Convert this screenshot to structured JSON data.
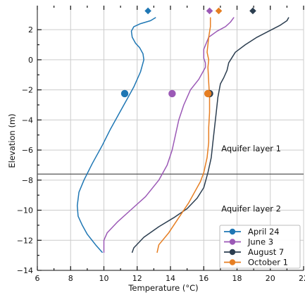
{
  "chart_data": {
    "type": "line",
    "xlabel": "Temperature (°C)",
    "ylabel": "Elevation (m)",
    "xlim": [
      6,
      22
    ],
    "ylim": [
      -14,
      3.6
    ],
    "xticks": [
      6,
      8,
      10,
      12,
      14,
      16,
      18,
      20,
      22
    ],
    "xtick_labels": [
      "6",
      "8",
      "10",
      "12",
      "14",
      "16",
      "18",
      "20",
      "22"
    ],
    "yticks": [
      -14,
      -12,
      -10,
      -8,
      -6,
      -4,
      -2,
      0,
      2
    ],
    "ytick_labels": [
      "−14",
      "−12",
      "−10",
      "−8",
      "−6",
      "−4",
      "−2",
      "0",
      "2"
    ],
    "grid": true,
    "reference_line": {
      "y": -7.6,
      "color": "#555555"
    },
    "annotations": [
      {
        "text": "Aquifer layer 1",
        "x": 18.85,
        "y": -5.9
      },
      {
        "text": "Aquifer layer 2",
        "x": 18.85,
        "y": -9.9
      }
    ],
    "legend_position": "lower-right",
    "series": [
      {
        "name": "April 24",
        "color": "#1f77b4",
        "x": [
          9.9,
          9.5,
          9.0,
          8.7,
          8.45,
          8.4,
          8.5,
          8.8,
          9.3,
          9.9,
          10.4,
          10.9,
          11.4,
          11.8,
          12.2,
          12.4,
          12.35,
          12.15,
          11.9,
          11.7,
          11.65,
          11.8,
          12.2,
          12.8,
          13.1
        ],
        "y": [
          -12.8,
          -12.3,
          -11.6,
          -11.0,
          -10.4,
          -9.7,
          -8.8,
          -8.0,
          -6.9,
          -5.7,
          -4.6,
          -3.6,
          -2.6,
          -1.8,
          -0.8,
          0.0,
          0.4,
          0.8,
          1.1,
          1.5,
          1.9,
          2.2,
          2.4,
          2.6,
          2.8
        ]
      },
      {
        "name": "June 3",
        "color": "#9b59b6",
        "x": [
          10.0,
          10.0,
          10.2,
          10.8,
          11.6,
          12.5,
          13.3,
          13.8,
          14.1,
          14.3,
          14.5,
          14.8,
          15.2,
          15.7,
          15.95,
          16.1,
          16.1,
          16.0,
          16.0,
          16.3,
          16.8,
          17.3,
          17.6,
          17.8
        ],
        "y": [
          -12.8,
          -12.0,
          -11.5,
          -10.8,
          -10.0,
          -9.1,
          -8.0,
          -7.0,
          -6.0,
          -5.0,
          -4.0,
          -3.0,
          -2.0,
          -1.3,
          -0.8,
          -0.5,
          -0.2,
          0.1,
          0.7,
          1.5,
          1.9,
          2.2,
          2.5,
          2.8
        ]
      },
      {
        "name": "August 7",
        "color": "#2c3e50",
        "x": [
          11.7,
          11.8,
          12.4,
          13.3,
          14.2,
          15.0,
          15.6,
          16.0,
          16.25,
          16.45,
          16.55,
          16.65,
          16.75,
          16.85,
          17.0,
          17.2,
          17.4,
          17.5,
          17.9,
          18.5,
          19.2,
          19.9,
          20.6,
          21.0,
          21.1
        ],
        "y": [
          -12.8,
          -12.5,
          -11.8,
          -11.1,
          -10.5,
          -9.9,
          -9.2,
          -8.5,
          -7.5,
          -6.5,
          -5.5,
          -4.5,
          -3.5,
          -2.5,
          -1.6,
          -1.2,
          -0.7,
          -0.2,
          0.5,
          1.0,
          1.5,
          1.9,
          2.3,
          2.6,
          2.8
        ]
      },
      {
        "name": "October 1",
        "color": "#e67e22",
        "x": [
          13.2,
          13.3,
          13.9,
          14.5,
          15.1,
          15.5,
          15.8,
          16.0,
          16.2,
          16.3,
          16.3,
          16.35,
          16.35,
          16.3,
          16.25,
          16.3,
          16.2,
          16.3,
          16.4,
          16.4
        ],
        "y": [
          -12.8,
          -12.3,
          -11.5,
          -10.5,
          -9.5,
          -8.7,
          -8.1,
          -7.5,
          -6.5,
          -5.5,
          -4.5,
          -3.5,
          -2.5,
          -1.5,
          -0.5,
          0.0,
          0.5,
          1.5,
          2.2,
          2.8
        ]
      }
    ],
    "circle_markers": [
      {
        "x": 11.25,
        "y": -2.25,
        "color": "#1f77b4"
      },
      {
        "x": 14.1,
        "y": -2.25,
        "color": "#9b59b6"
      },
      {
        "x": 16.35,
        "y": -2.25,
        "color": "#2c3e50"
      },
      {
        "x": 16.25,
        "y": -2.25,
        "color": "#e67e22"
      }
    ],
    "diamond_markers": [
      {
        "x": 12.65,
        "y": 3.25,
        "color": "#1f77b4"
      },
      {
        "x": 16.35,
        "y": 3.25,
        "color": "#9b59b6"
      },
      {
        "x": 16.9,
        "y": 3.25,
        "color": "#e67e22"
      },
      {
        "x": 18.95,
        "y": 3.25,
        "color": "#2c3e50"
      }
    ]
  }
}
